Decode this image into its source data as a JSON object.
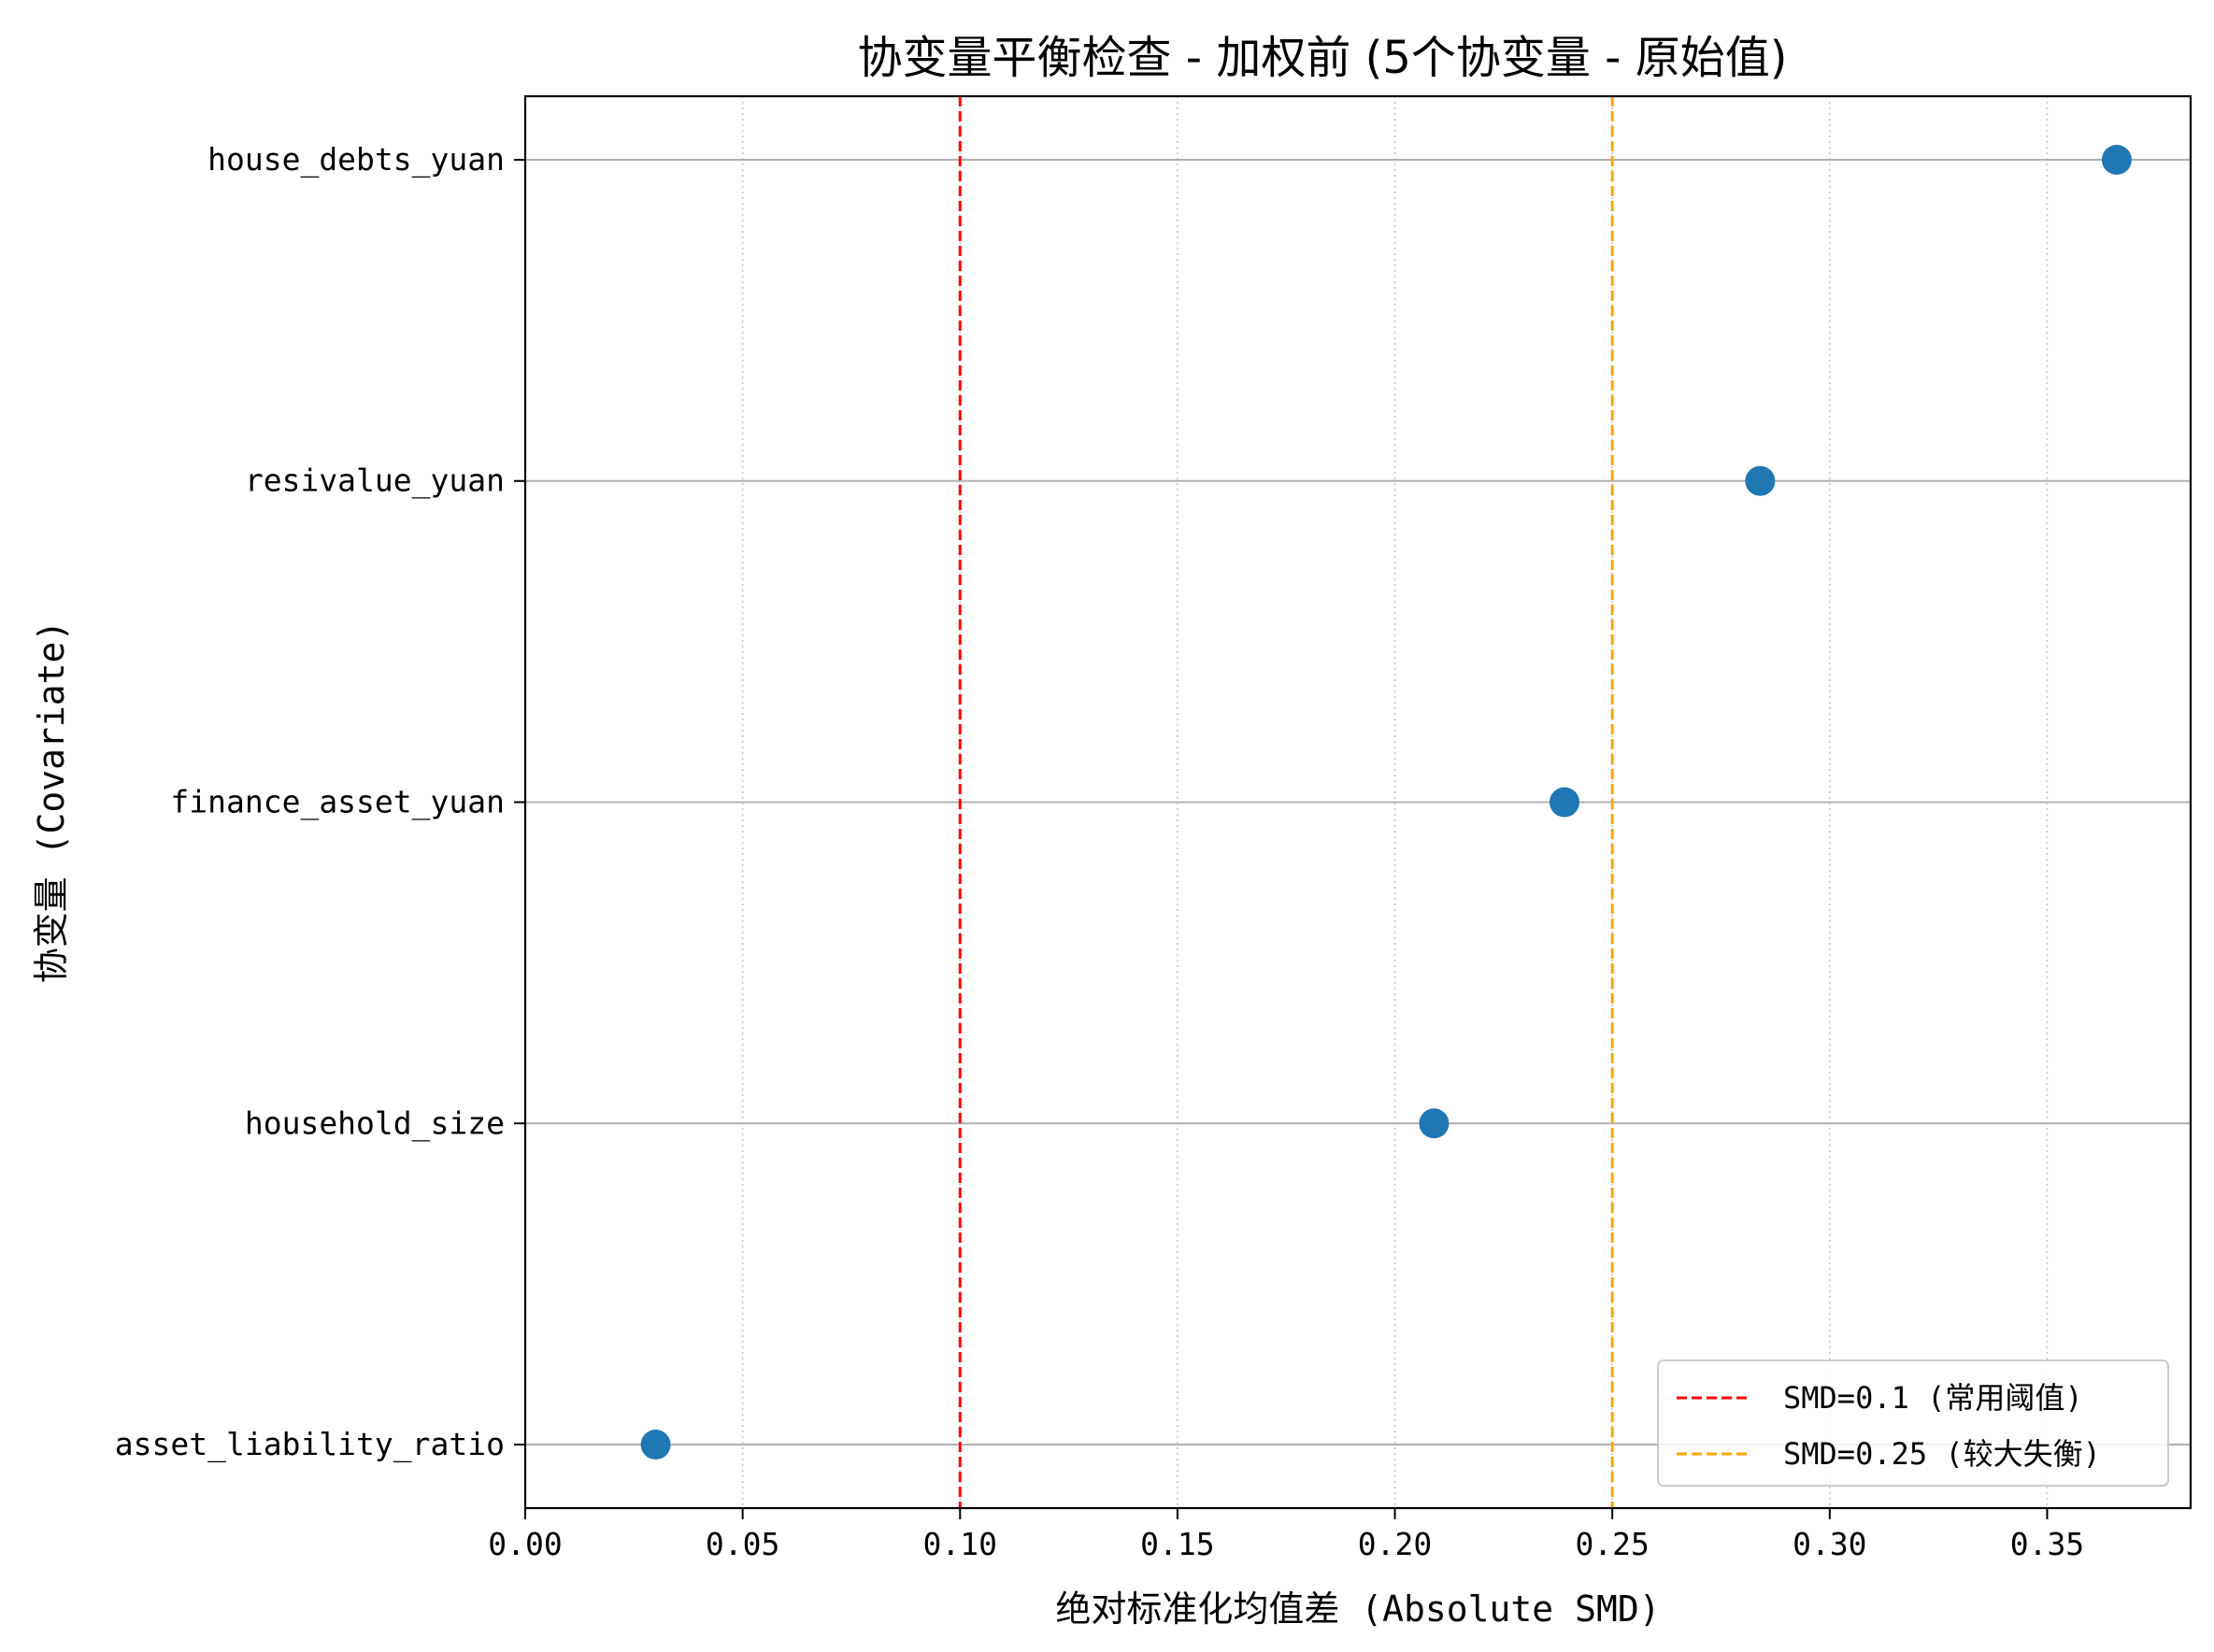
{
  "chart_data": {
    "type": "scatter",
    "title": "协变量平衡检查 - 加权前 (5个协变量 - 原始值)",
    "xlabel": "绝对标准化均值差 (Absolute SMD)",
    "ylabel": "协变量 (Covariate)",
    "xlim": [
      0,
      0.383
    ],
    "xticks": [
      0.0,
      0.05,
      0.1,
      0.15,
      0.2,
      0.25,
      0.3,
      0.35
    ],
    "xtick_labels": [
      "0.00",
      "0.05",
      "0.10",
      "0.15",
      "0.20",
      "0.25",
      "0.30",
      "0.35"
    ],
    "categories": [
      "house_debts_yuan",
      "resivalue_yuan",
      "finance_asset_yuan",
      "household_size",
      "asset_liability_ratio"
    ],
    "series": [
      {
        "points": [
          {
            "y": "house_debts_yuan",
            "x": 0.366
          },
          {
            "y": "resivalue_yuan",
            "x": 0.284
          },
          {
            "y": "finance_asset_yuan",
            "x": 0.239
          },
          {
            "y": "household_size",
            "x": 0.209
          },
          {
            "y": "asset_liability_ratio",
            "x": 0.03
          }
        ],
        "color": "#1f77b4"
      }
    ],
    "reference_lines": [
      {
        "x": 0.1,
        "label": "SMD=0.1 (常用阈值)",
        "color": "#ff0000",
        "style": "dashed"
      },
      {
        "x": 0.25,
        "label": "SMD=0.25 (较大失衡)",
        "color": "#ffa500",
        "style": "dashed"
      }
    ],
    "grid": {
      "x": "dotted",
      "y": "solid"
    },
    "legend_position": "lower-right"
  }
}
